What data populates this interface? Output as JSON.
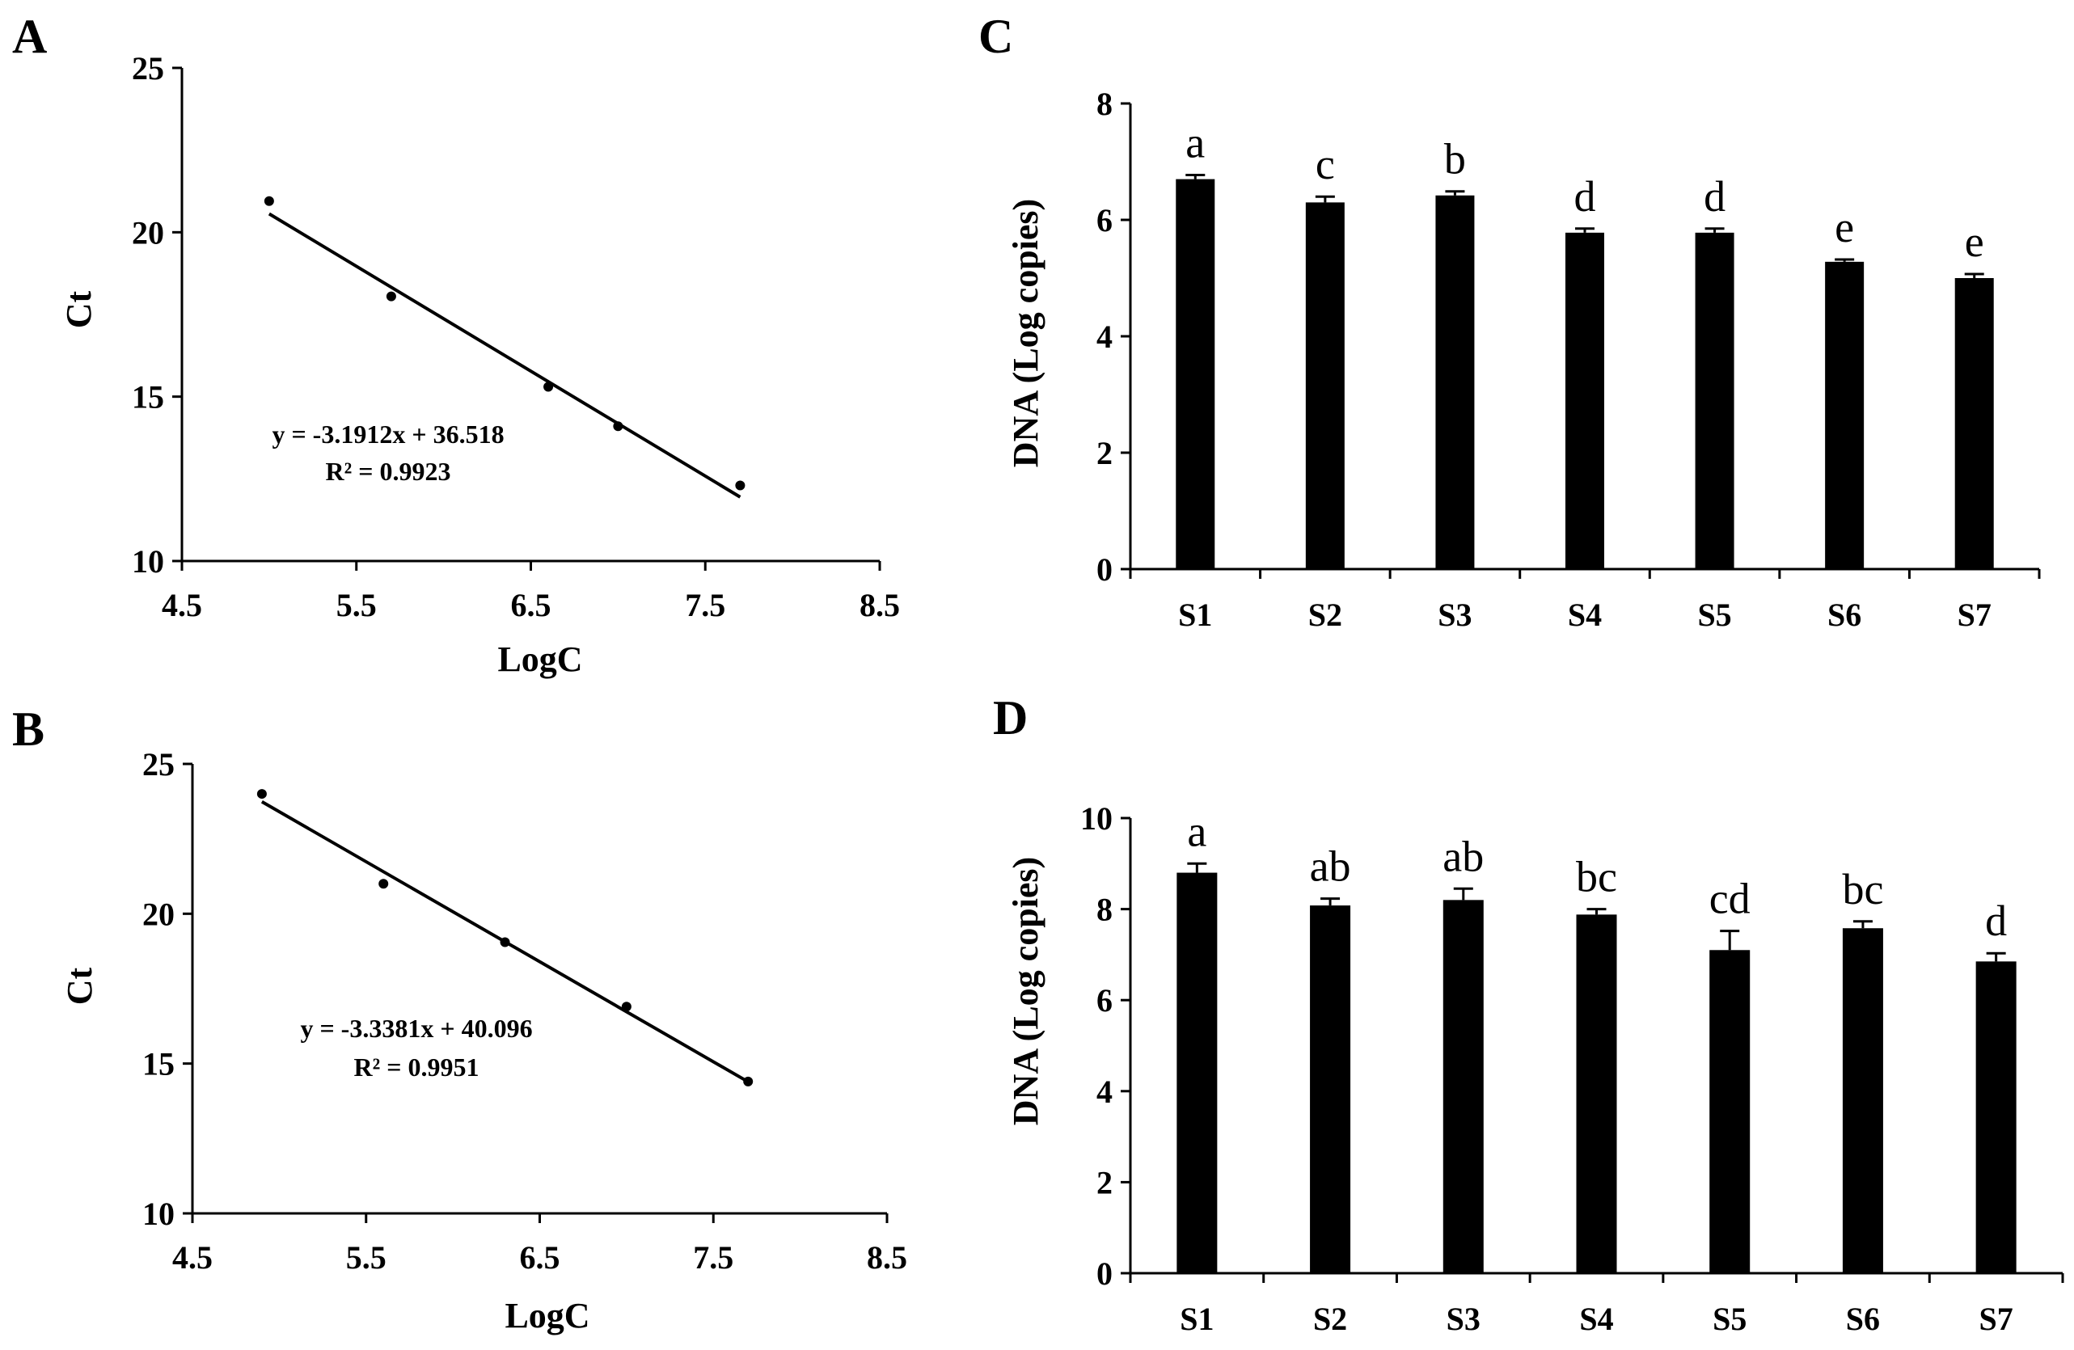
{
  "chart_data": [
    {
      "panel": "A",
      "type": "scatter",
      "xlabel": "LogC",
      "ylabel": "Ct",
      "xlim": [
        4.5,
        8.5
      ],
      "ylim": [
        10,
        25
      ],
      "xticks": [
        "4.5",
        "5.5",
        "6.5",
        "7.5",
        "8.5"
      ],
      "yticks": [
        "10",
        "15",
        "20",
        "25"
      ],
      "points": [
        {
          "x": 5.0,
          "y": 20.95
        },
        {
          "x": 5.7,
          "y": 18.05
        },
        {
          "x": 6.6,
          "y": 15.3
        },
        {
          "x": 7.0,
          "y": 14.1
        },
        {
          "x": 7.7,
          "y": 12.3
        }
      ],
      "trendline": {
        "slope": -3.1912,
        "intercept": 36.518,
        "x_range": [
          5.0,
          7.7
        ]
      },
      "equation": "y = -3.1912x + 36.518",
      "r2": "R² = 0.9923"
    },
    {
      "panel": "B",
      "type": "scatter",
      "xlabel": "LogC",
      "ylabel": "Ct",
      "xlim": [
        4.5,
        8.5
      ],
      "ylim": [
        10,
        25
      ],
      "xticks": [
        "4.5",
        "5.5",
        "6.5",
        "7.5",
        "8.5"
      ],
      "yticks": [
        "10",
        "15",
        "20",
        "25"
      ],
      "points": [
        {
          "x": 4.9,
          "y": 24.0
        },
        {
          "x": 5.6,
          "y": 21.0
        },
        {
          "x": 6.3,
          "y": 19.05
        },
        {
          "x": 7.0,
          "y": 16.9
        },
        {
          "x": 7.7,
          "y": 14.4
        }
      ],
      "trendline": {
        "slope": -3.3381,
        "intercept": 40.096,
        "x_range": [
          4.9,
          7.7
        ]
      },
      "equation": "y = -3.3381x + 40.096",
      "r2": "R² = 0.9951"
    },
    {
      "panel": "C",
      "type": "bar",
      "ylabel": "DNA (Log copies)",
      "ylim": [
        0,
        8
      ],
      "yticks": [
        "0",
        "2",
        "4",
        "6",
        "8"
      ],
      "categories": [
        "S1",
        "S2",
        "S3",
        "S4",
        "S5",
        "S6",
        "S7"
      ],
      "values": [
        6.7,
        6.3,
        6.42,
        5.78,
        5.78,
        5.28,
        5.0
      ],
      "errors": [
        0.07,
        0.1,
        0.07,
        0.07,
        0.07,
        0.04,
        0.07
      ],
      "significance": [
        "a",
        "c",
        "b",
        "d",
        "d",
        "e",
        "e"
      ]
    },
    {
      "panel": "D",
      "type": "bar",
      "ylabel": "DNA (Log copies)",
      "ylim": [
        0,
        10
      ],
      "yticks": [
        "0",
        "2",
        "4",
        "6",
        "8",
        "10"
      ],
      "categories": [
        "S1",
        "S2",
        "S3",
        "S4",
        "S5",
        "S6",
        "S7"
      ],
      "values": [
        8.8,
        8.08,
        8.2,
        7.88,
        7.1,
        7.58,
        6.85
      ],
      "errors": [
        0.2,
        0.15,
        0.25,
        0.12,
        0.42,
        0.15,
        0.18
      ],
      "significance": [
        "a",
        "ab",
        "ab",
        "bc",
        "cd",
        "bc",
        "d"
      ]
    }
  ]
}
